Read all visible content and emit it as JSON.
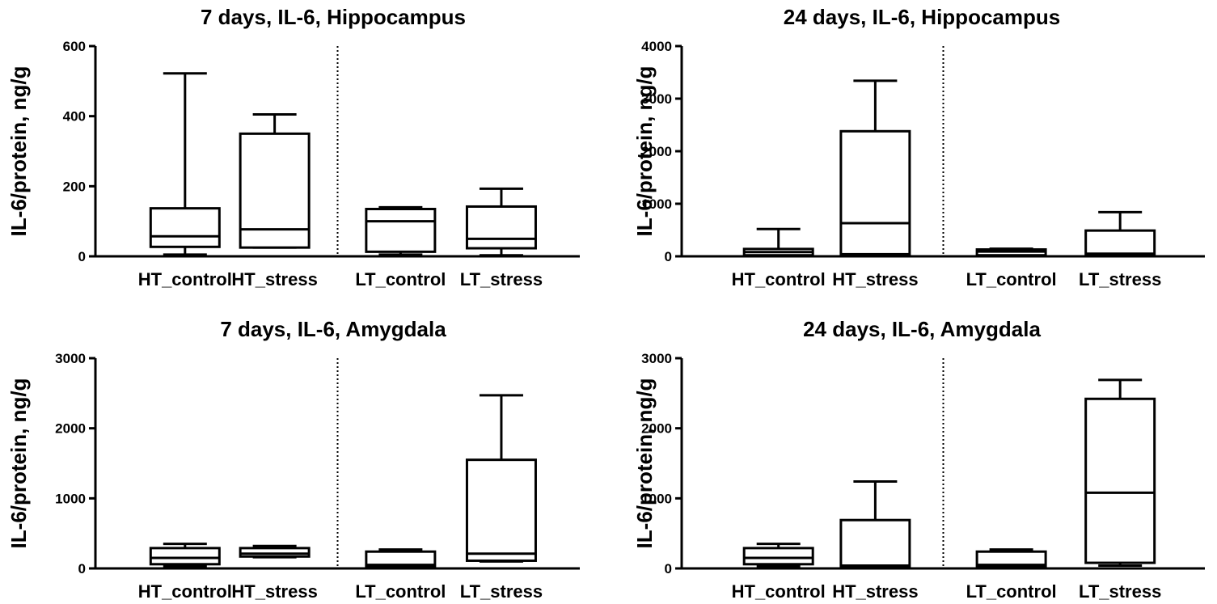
{
  "colors": {
    "stroke": "#000000",
    "background": "#ffffff"
  },
  "chart_data": [
    {
      "type": "box",
      "title": "7 days, IL-6, Hippocampus",
      "xlabel": "",
      "ylabel": "IL-6/protein, ng/g",
      "ylim": [
        0,
        600
      ],
      "yticks": [
        0,
        200,
        400,
        600
      ],
      "yticklabels": [
        "0",
        "200",
        "400",
        "600"
      ],
      "categories": [
        "HT_control",
        "HT_stress",
        "LT_control",
        "LT_stress"
      ],
      "divider_after_index": 1,
      "boxes": [
        {
          "min": 5,
          "q1": 27,
          "median": 57,
          "q3": 137,
          "max": 522
        },
        {
          "min": 25,
          "q1": 25,
          "median": 77,
          "q3": 350,
          "max": 405
        },
        {
          "min": 5,
          "q1": 13,
          "median": 100,
          "q3": 135,
          "max": 140
        },
        {
          "min": 3,
          "q1": 23,
          "median": 50,
          "q3": 142,
          "max": 193
        }
      ]
    },
    {
      "type": "box",
      "title": "24 days, IL-6, Hippocampus",
      "xlabel": "",
      "ylabel": "IL-6/protein, ng/g",
      "ylim": [
        0,
        4000
      ],
      "yticks": [
        0,
        1000,
        2000,
        3000,
        4000
      ],
      "yticklabels": [
        "0",
        "1000",
        "2000",
        "3000",
        "4000"
      ],
      "categories": [
        "HT_control",
        "HT_stress",
        "LT_control",
        "LT_stress"
      ],
      "divider_after_index": 1,
      "boxes": [
        {
          "min": 0,
          "q1": 20,
          "median": 80,
          "q3": 140,
          "max": 520
        },
        {
          "min": 30,
          "q1": 40,
          "median": 630,
          "q3": 2380,
          "max": 3340
        },
        {
          "min": 0,
          "q1": 20,
          "median": 90,
          "q3": 130,
          "max": 145
        },
        {
          "min": 10,
          "q1": 30,
          "median": 50,
          "q3": 490,
          "max": 840
        }
      ]
    },
    {
      "type": "box",
      "title": "7 days, IL-6, Amygdala",
      "xlabel": "",
      "ylabel": "IL-6/protein, ng/g",
      "ylim": [
        0,
        3000
      ],
      "yticks": [
        0,
        1000,
        2000,
        3000
      ],
      "yticklabels": [
        "0",
        "1000",
        "2000",
        "3000"
      ],
      "categories": [
        "HT_control",
        "HT_stress",
        "LT_control",
        "LT_stress"
      ],
      "divider_after_index": 1,
      "boxes": [
        {
          "min": 30,
          "q1": 60,
          "median": 150,
          "q3": 290,
          "max": 350
        },
        {
          "min": 160,
          "q1": 170,
          "median": 210,
          "q3": 290,
          "max": 320
        },
        {
          "min": 10,
          "q1": 30,
          "median": 50,
          "q3": 240,
          "max": 270
        },
        {
          "min": 100,
          "q1": 110,
          "median": 210,
          "q3": 1550,
          "max": 2470
        }
      ]
    },
    {
      "type": "box",
      "title": "24 days, IL-6, Amygdala",
      "xlabel": "",
      "ylabel": "IL-6/protein, ng/g",
      "ylim": [
        0,
        3000
      ],
      "yticks": [
        0,
        1000,
        2000,
        3000
      ],
      "yticklabels": [
        "0",
        "1000",
        "2000",
        "3000"
      ],
      "categories": [
        "HT_control",
        "HT_stress",
        "LT_control",
        "LT_stress"
      ],
      "divider_after_index": 1,
      "boxes": [
        {
          "min": 30,
          "q1": 60,
          "median": 150,
          "q3": 290,
          "max": 350
        },
        {
          "min": 20,
          "q1": 30,
          "median": 40,
          "q3": 690,
          "max": 1240
        },
        {
          "min": 10,
          "q1": 30,
          "median": 50,
          "q3": 240,
          "max": 270
        },
        {
          "min": 40,
          "q1": 80,
          "median": 1080,
          "q3": 2420,
          "max": 2690
        }
      ]
    }
  ]
}
